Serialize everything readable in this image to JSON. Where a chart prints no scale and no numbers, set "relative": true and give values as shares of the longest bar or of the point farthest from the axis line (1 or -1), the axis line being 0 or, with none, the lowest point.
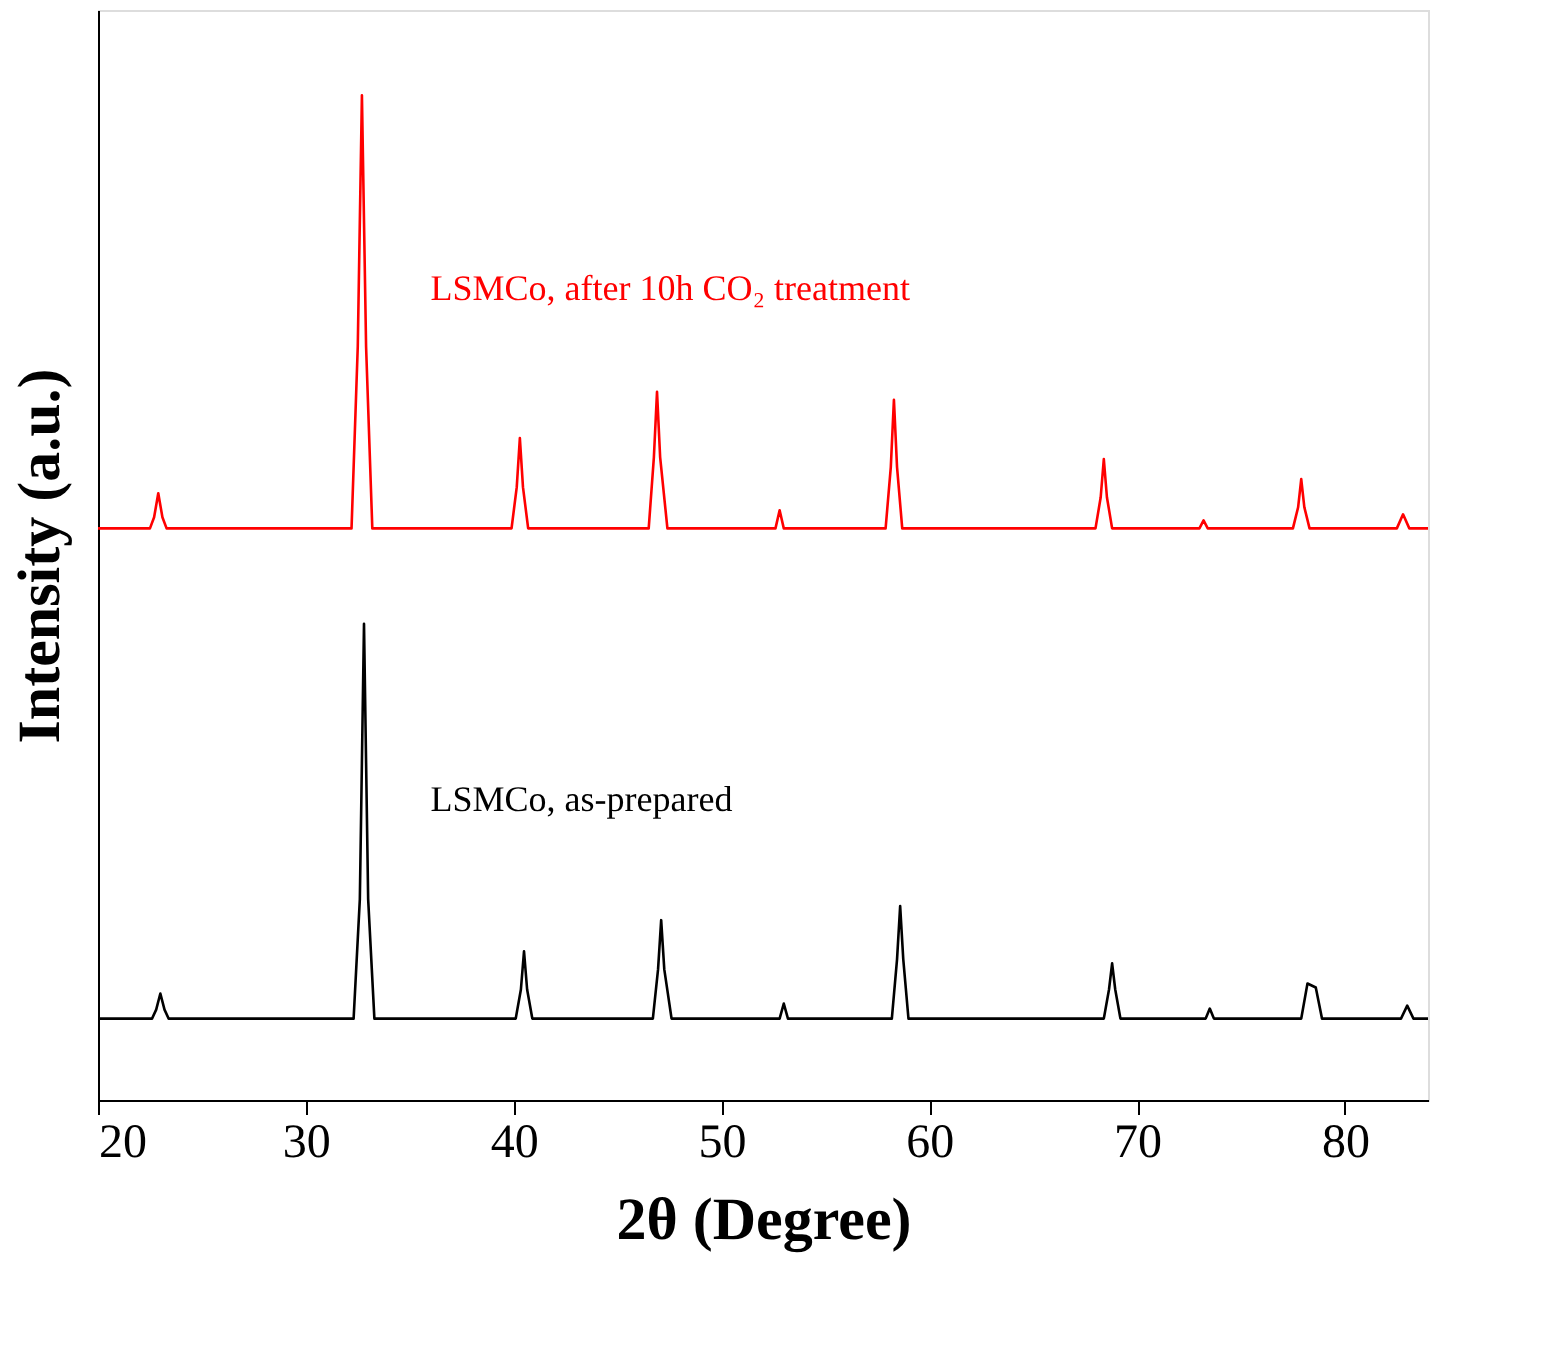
{
  "chart_data": {
    "type": "line",
    "relative": true,
    "xlabel": "2θ (Degree)",
    "ylabel": "Intensity (a.u.)",
    "xlim": [
      20,
      84
    ],
    "xticks": [
      20,
      30,
      40,
      50,
      60,
      70,
      80
    ],
    "grid": false,
    "legend": false,
    "marker": "none",
    "line_style": "solid",
    "series": [
      {
        "name": "LSMCo, as-prepared",
        "color": "#000000",
        "x": [
          20,
          22.6,
          22.8,
          23.0,
          23.2,
          23.4,
          32.3,
          32.6,
          32.8,
          33.0,
          33.3,
          40.1,
          40.35,
          40.5,
          40.65,
          40.9,
          46.7,
          46.95,
          47.1,
          47.25,
          47.6,
          52.8,
          53.0,
          53.2,
          58.2,
          58.45,
          58.6,
          58.75,
          59.0,
          68.4,
          68.65,
          68.8,
          68.95,
          69.2,
          73.3,
          73.5,
          73.7,
          77.9,
          78.2,
          78.6,
          78.9,
          82.7,
          83.0,
          83.3,
          84
        ],
        "values": [
          0.081,
          0.081,
          0.09,
          0.106,
          0.09,
          0.081,
          0.081,
          0.2,
          0.474,
          0.2,
          0.081,
          0.081,
          0.11,
          0.148,
          0.11,
          0.081,
          0.081,
          0.13,
          0.179,
          0.13,
          0.081,
          0.081,
          0.096,
          0.081,
          0.081,
          0.14,
          0.193,
          0.14,
          0.081,
          0.081,
          0.11,
          0.136,
          0.11,
          0.081,
          0.081,
          0.091,
          0.081,
          0.081,
          0.116,
          0.112,
          0.081,
          0.081,
          0.094,
          0.081,
          0.081
        ]
      },
      {
        "name": "LSMCo, after 10h CO₂ treatment",
        "color": "#ff0000",
        "x": [
          20,
          22.5,
          22.7,
          22.9,
          23.1,
          23.3,
          32.2,
          32.5,
          32.7,
          32.9,
          33.2,
          39.9,
          40.15,
          40.3,
          40.45,
          40.7,
          46.5,
          46.75,
          46.9,
          47.05,
          47.4,
          52.6,
          52.8,
          53.0,
          57.9,
          58.15,
          58.3,
          58.45,
          58.7,
          68.0,
          68.25,
          68.4,
          68.55,
          68.8,
          73.0,
          73.2,
          73.4,
          77.5,
          77.75,
          77.9,
          78.05,
          78.3,
          82.5,
          82.8,
          83.1,
          84
        ],
        "values": [
          0.569,
          0.569,
          0.58,
          0.604,
          0.58,
          0.569,
          0.569,
          0.75,
          1,
          0.75,
          0.569,
          0.569,
          0.61,
          0.659,
          0.61,
          0.569,
          0.569,
          0.64,
          0.705,
          0.64,
          0.569,
          0.569,
          0.587,
          0.569,
          0.569,
          0.63,
          0.697,
          0.63,
          0.569,
          0.569,
          0.6,
          0.638,
          0.6,
          0.569,
          0.569,
          0.577,
          0.569,
          0.569,
          0.59,
          0.618,
          0.59,
          0.569,
          0.569,
          0.583,
          0.569,
          0.569
        ]
      }
    ]
  }
}
